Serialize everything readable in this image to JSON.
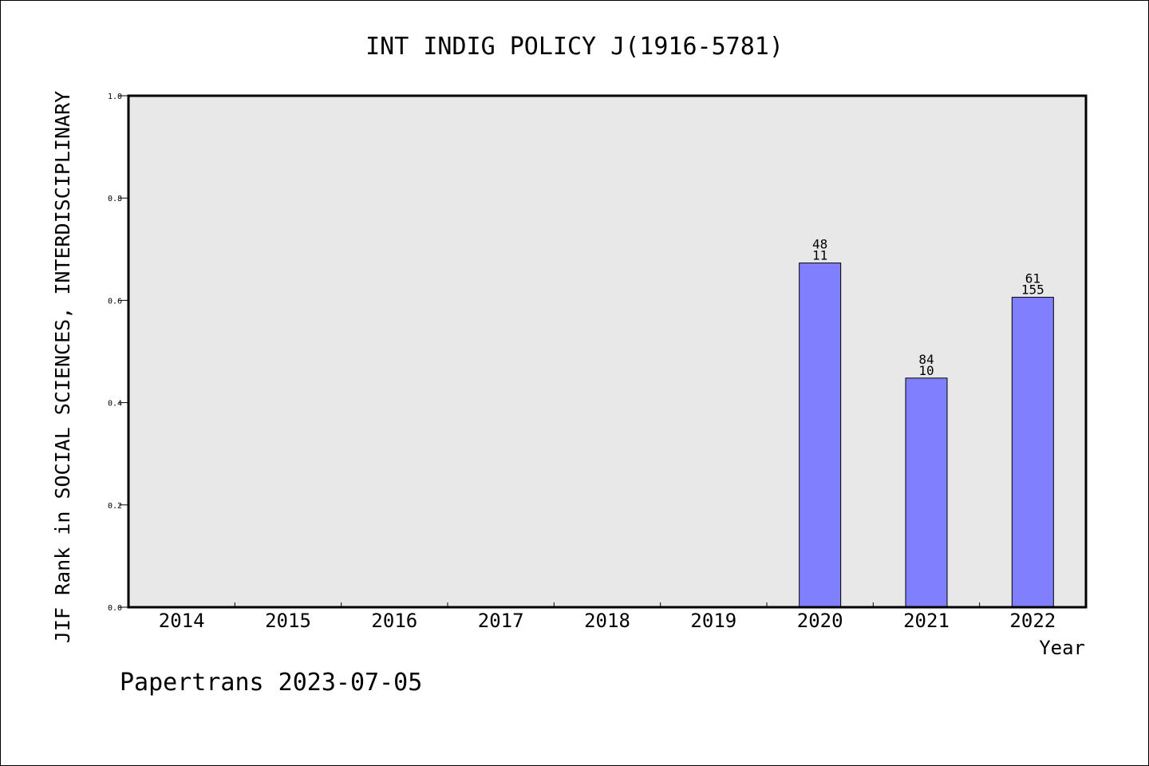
{
  "chart_data": {
    "type": "bar",
    "title": "INT INDIG POLICY J(1916-5781)",
    "xlabel": "Year",
    "ylabel": "JIF Rank in SOCIAL SCIENCES, INTERDISCIPLINARY",
    "categories": [
      "2014",
      "2015",
      "2016",
      "2017",
      "2018",
      "2019",
      "2020",
      "2021",
      "2022"
    ],
    "values": [
      null,
      null,
      null,
      null,
      null,
      null,
      0.673,
      0.448,
      0.606
    ],
    "bar_labels": [
      null,
      null,
      null,
      null,
      null,
      null,
      {
        "top": "48",
        "bottom": "11"
      },
      {
        "top": "84",
        "bottom": "10"
      },
      {
        "top": "61",
        "bottom": "155"
      }
    ],
    "ylim": [
      0,
      1.0
    ],
    "yticks": [
      "0.0",
      "0.2",
      "0.4",
      "0.6",
      "0.8",
      "1.0"
    ],
    "grid": false,
    "colors": {
      "bar_fill": "#8080ff",
      "plot_background": "#e8e8e8"
    }
  },
  "footer": {
    "text": "Papertrans 2023-07-05"
  }
}
